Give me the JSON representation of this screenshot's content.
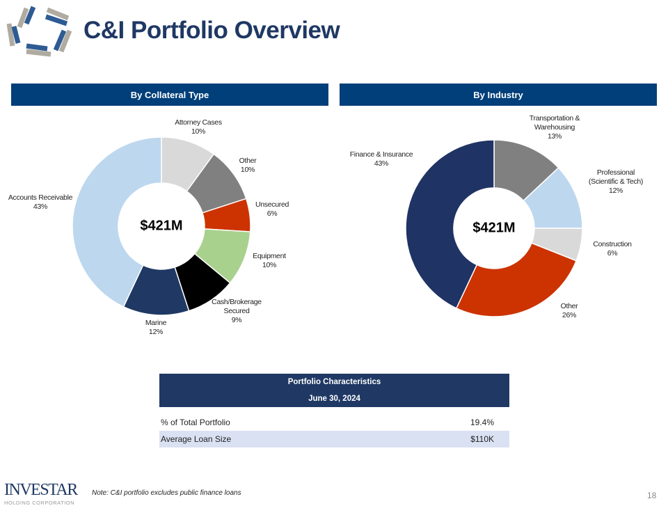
{
  "title": "C&I Portfolio Overview",
  "chart_data": [
    {
      "type": "pie",
      "title": "By Collateral Type",
      "center_label": "$421M",
      "categories": [
        "Attorney Cases",
        "Other",
        "Unsecured",
        "Equipment",
        "Cash/Brokerage Secured",
        "Marine",
        "Accounts Receivable"
      ],
      "values": [
        10,
        10,
        6,
        10,
        9,
        12,
        43
      ],
      "value_labels": [
        "10%",
        "10%",
        "6%",
        "10%",
        "9%",
        "12%",
        "43%"
      ],
      "colors": [
        "#d9d9d9",
        "#808080",
        "#cc3300",
        "#a9d18e",
        "#000000",
        "#1f3864",
        "#bdd7ee"
      ]
    },
    {
      "type": "pie",
      "title": "By Industry",
      "center_label": "$421M",
      "categories": [
        "Transportation & Warehousing",
        "Professional (Scientific & Tech)",
        "Construction",
        "Other",
        "Finance & Insurance"
      ],
      "values": [
        13,
        12,
        6,
        26,
        43
      ],
      "value_labels": [
        "13%",
        "12%",
        "6%",
        "26%",
        "43%"
      ],
      "colors": [
        "#808080",
        "#bdd7ee",
        "#d9d9d9",
        "#cc3300",
        "#1f3364"
      ]
    }
  ],
  "table": {
    "title": "Portfolio Characteristics",
    "subtitle": "June 30, 2024",
    "rows": [
      {
        "label": "% of Total Portfolio",
        "value": "19.4%"
      },
      {
        "label": "Average Loan Size",
        "value": "$110K"
      }
    ]
  },
  "footer": {
    "note": "Note: C&I portfolio excludes public finance loans",
    "page": "18",
    "logo_text": "INVESTAR",
    "logo_sub": "HOLDING CORPORATION"
  },
  "colors": {
    "header": "#003f7a",
    "navy": "#1f3864"
  }
}
